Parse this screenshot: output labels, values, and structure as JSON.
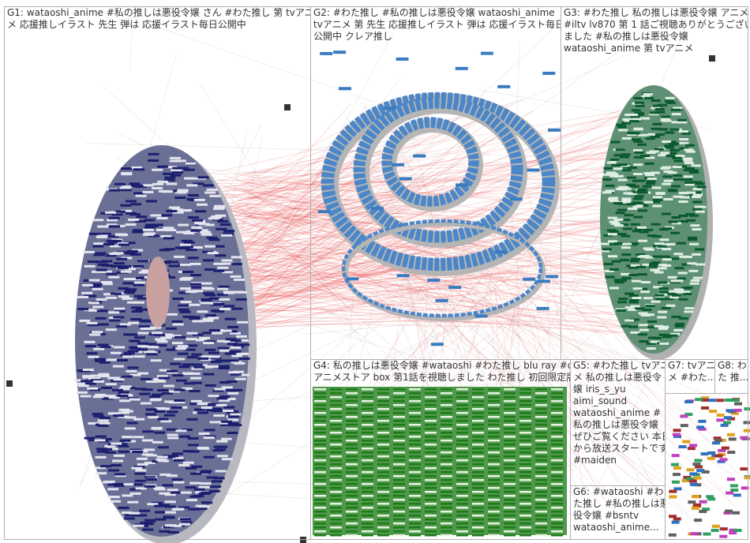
{
  "groups": [
    {
      "lines": [
        "G1: wataoshi_anime #私の推しは悪役令嬢 さん #わた推し 第 tvアニ",
        "メ 応援推しイラスト 先生 弾は 応援イラスト毎日公開中"
      ]
    },
    {
      "lines": [
        "G2: #わた推し #私の推しは悪役令嬢 wataoshi_anime",
        "tvアニメ 第 先生 応援推しイラスト 弾は 応援イラスト毎日",
        "公開中 クレア推し"
      ]
    },
    {
      "lines": [
        "G3: #わた推し 私の推しは悪役令嬢 アニメ",
        "#iltv lv870 第 1 話ご視聴ありがとうござい",
        "ました #私の推しは悪役令嬢",
        "wataoshi_anime 第 tvアニメ"
      ]
    },
    {
      "lines": [
        "G4: 私の推しは悪役令嬢 #wataoshi #わた推し blu ray #d",
        "アニメストア box 第1話を視聴しました わた推し 初回限定版"
      ]
    },
    {
      "lines": [
        "G5: #わた推し tvアニ",
        "メ 私の推しは悪役令",
        "嬢 iris_s_yu",
        "aimi_sound",
        "wataoshi_anime #",
        "私の推しは悪役令嬢",
        "ぜひご覧ください 本日",
        "から放送スタートです",
        "#maiden"
      ]
    },
    {
      "lines": [
        "G6: #wataoshi #わ",
        "た推し #私の推しは悪",
        "役令嬢 #bsntv",
        "wataoshi_anime..."
      ]
    },
    {
      "lines": [
        "G7: tvアニ",
        "メ #わた..."
      ]
    },
    {
      "lines": [
        "G8: わ",
        "た 推..."
      ]
    }
  ]
}
